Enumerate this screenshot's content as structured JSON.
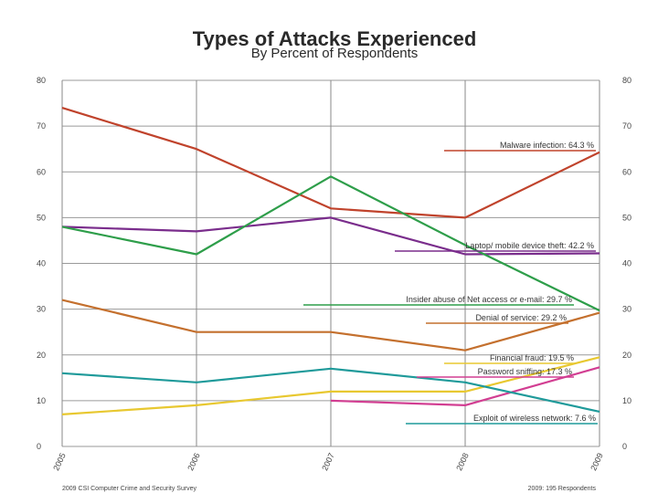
{
  "chart_data": {
    "type": "line",
    "title": "Types of Attacks Experienced",
    "subtitle": "By Percent of Respondents",
    "categories": [
      "2005",
      "2006",
      "2007",
      "2008",
      "2009"
    ],
    "ylim": [
      0,
      80
    ],
    "yticks": [
      0,
      10,
      20,
      30,
      40,
      50,
      60,
      70,
      80
    ],
    "ytick_labels": [
      "0",
      "10",
      "20",
      "30",
      "40",
      "50",
      "60",
      "70",
      "80"
    ],
    "grid": true,
    "series": [
      {
        "name": "Malware infection",
        "color": "#c0432c",
        "values": [
          74,
          65,
          52,
          50,
          64.3
        ],
        "label": "Malware infection:  64.3 %"
      },
      {
        "name": "Laptop/ mobile device theft",
        "color": "#7a2d8c",
        "values": [
          48,
          47,
          50,
          42,
          42.2
        ],
        "label": "Laptop/ mobile device theft:  42.2 %"
      },
      {
        "name": "Insider abuse of Net access or e-mail",
        "color": "#2e9e4a",
        "values": [
          48,
          42,
          59,
          44,
          29.7
        ],
        "label": "Insider abuse of Net access or e-mail:  29.7 %"
      },
      {
        "name": "Denial of service",
        "color": "#c4702e",
        "values": [
          32,
          25,
          25,
          21,
          29.2
        ],
        "label": "Denial of service:  29.2 %"
      },
      {
        "name": "Financial fraud",
        "color": "#e8c830",
        "values": [
          7,
          9,
          12,
          12,
          19.5
        ],
        "label": "Financial fraud:  19.5 %"
      },
      {
        "name": "Password sniffing",
        "color": "#d23e92",
        "values": [
          null,
          null,
          10,
          9,
          17.3
        ],
        "label": "Password sniffing:  17.3 %"
      },
      {
        "name": "Exploit of wireless network",
        "color": "#1f9a9a",
        "values": [
          16,
          14,
          17,
          14,
          7.6
        ],
        "label": "Exploit of wireless network:  7.6 %"
      }
    ],
    "footer_left": "2009 CSI Computer Crime and Security Survey",
    "footer_right": "2009: 195 Respondents"
  }
}
